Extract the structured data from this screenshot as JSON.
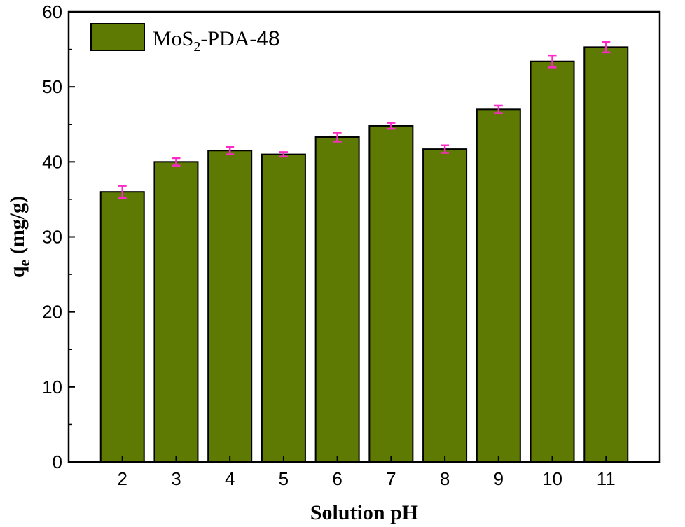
{
  "chart_data": {
    "type": "bar",
    "categories": [
      "2",
      "3",
      "4",
      "5",
      "6",
      "7",
      "8",
      "9",
      "10",
      "11"
    ],
    "series": [
      {
        "name": "MoS2-PDA-48",
        "values": [
          36.0,
          40.0,
          41.5,
          41.0,
          43.3,
          44.8,
          41.7,
          47.0,
          53.4,
          55.3
        ],
        "errors": [
          0.8,
          0.5,
          0.5,
          0.3,
          0.6,
          0.4,
          0.5,
          0.5,
          0.8,
          0.7
        ]
      }
    ],
    "xlabel": "Solution pH",
    "ylabel_main": "q",
    "ylabel_sub": "e",
    "ylabel_rest": " (mg/g)",
    "ylim": [
      0,
      60
    ],
    "yticks": [
      0,
      10,
      20,
      30,
      40,
      50,
      60
    ],
    "grid": false,
    "legend": {
      "placement": "top-left",
      "parts": {
        "pre": "MoS",
        "sub": "2",
        "mid": "-PDA-",
        "num": "48"
      }
    },
    "colors": {
      "bar_fill": "#5e7a03",
      "bar_stroke": "#000000",
      "error_bar": "#ff29c8",
      "axis": "#000000"
    }
  }
}
